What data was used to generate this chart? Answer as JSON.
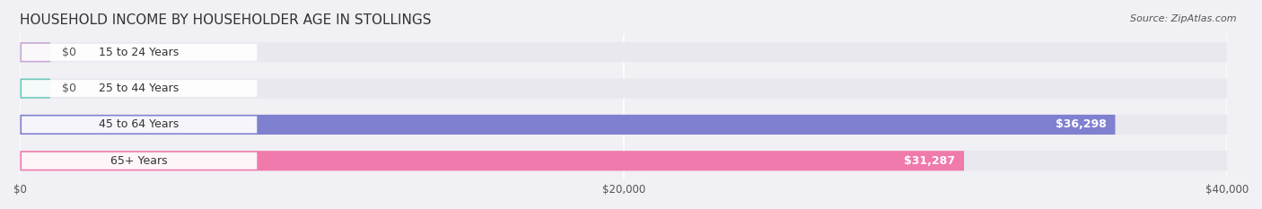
{
  "title": "HOUSEHOLD INCOME BY HOUSEHOLDER AGE IN STOLLINGS",
  "source": "Source: ZipAtlas.com",
  "categories": [
    "15 to 24 Years",
    "25 to 44 Years",
    "45 to 64 Years",
    "65+ Years"
  ],
  "values": [
    0,
    0,
    36298,
    31287
  ],
  "bar_colors": [
    "#c9a8d4",
    "#6dcbbc",
    "#8080d0",
    "#f07aab"
  ],
  "background_color": "#f0f0f5",
  "bar_background_color": "#e8e8ee",
  "xlim": [
    0,
    40000
  ],
  "xticks": [
    0,
    20000,
    40000
  ],
  "xtick_labels": [
    "$0",
    "$20,000",
    "$40,000"
  ],
  "value_labels": [
    "$0",
    "$0",
    "$36,298",
    "$31,287"
  ],
  "bar_height": 0.55,
  "title_fontsize": 11,
  "label_fontsize": 9,
  "tick_fontsize": 8.5,
  "source_fontsize": 8
}
